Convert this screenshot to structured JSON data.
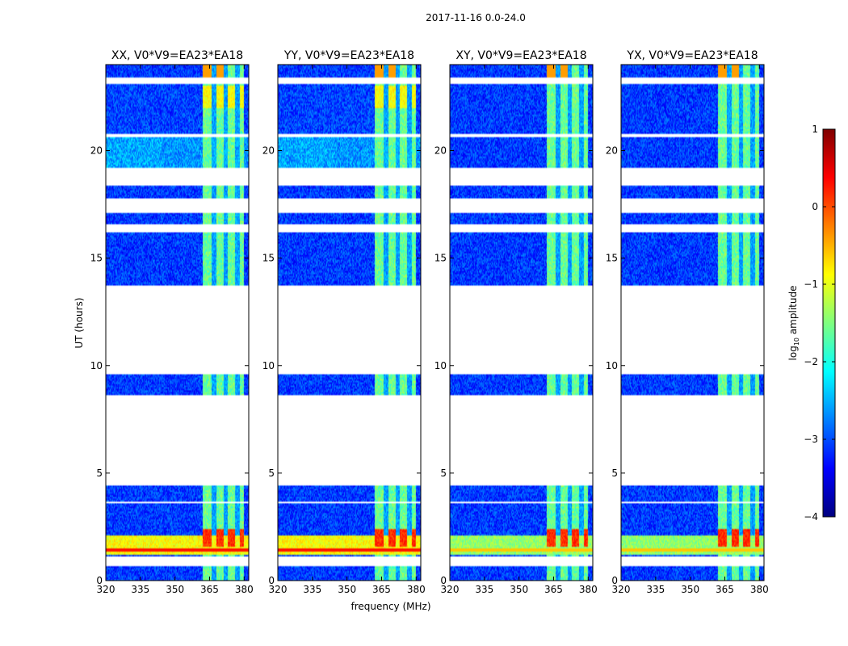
{
  "chart_data": {
    "type": "heatmap",
    "suptitle": "2017-11-16 0.0-24.0",
    "xlabel": "frequency (MHz)",
    "ylabel": "UT (hours)",
    "xlim": [
      320,
      382
    ],
    "ylim": [
      0,
      24
    ],
    "xticks": [
      320,
      335,
      350,
      365,
      380
    ],
    "yticks": [
      0,
      5,
      10,
      15,
      20
    ],
    "panels": [
      {
        "title": "XX, V0*V9=EA23*EA18",
        "mode": "XX"
      },
      {
        "title": "YY, V0*V9=EA23*EA18",
        "mode": "YY"
      },
      {
        "title": "XY, V0*V9=EA23*EA18",
        "mode": "XY"
      },
      {
        "title": "YX, V0*V9=EA23*EA18",
        "mode": "YX"
      }
    ],
    "data_blocks_hours": [
      [
        0.0,
        0.7
      ],
      [
        1.1,
        3.6
      ],
      [
        3.7,
        4.4
      ],
      [
        8.6,
        9.6
      ],
      [
        13.7,
        16.2
      ],
      [
        16.6,
        17.1
      ],
      [
        17.8,
        18.4
      ],
      [
        19.2,
        20.6
      ],
      [
        20.8,
        23.1
      ],
      [
        23.4,
        24.0
      ]
    ],
    "rfi_band_mhz": [
      362,
      380
    ],
    "rfi_channels_mhz": [
      [
        362,
        366
      ],
      [
        368,
        371
      ],
      [
        373,
        376
      ],
      [
        378,
        380
      ]
    ],
    "colorbar": {
      "label_prefix": "log",
      "label_sub": "10",
      "label_suffix": " amplitude",
      "range": [
        -4,
        1
      ],
      "ticks": [
        "1",
        "0",
        "−1",
        "−2",
        "−3",
        "−4"
      ],
      "colors": [
        "#00007f",
        "#0000ff",
        "#007fff",
        "#00ffff",
        "#7fff7f",
        "#ffff00",
        "#ff7f00",
        "#ff0000",
        "#7f0000"
      ]
    }
  }
}
